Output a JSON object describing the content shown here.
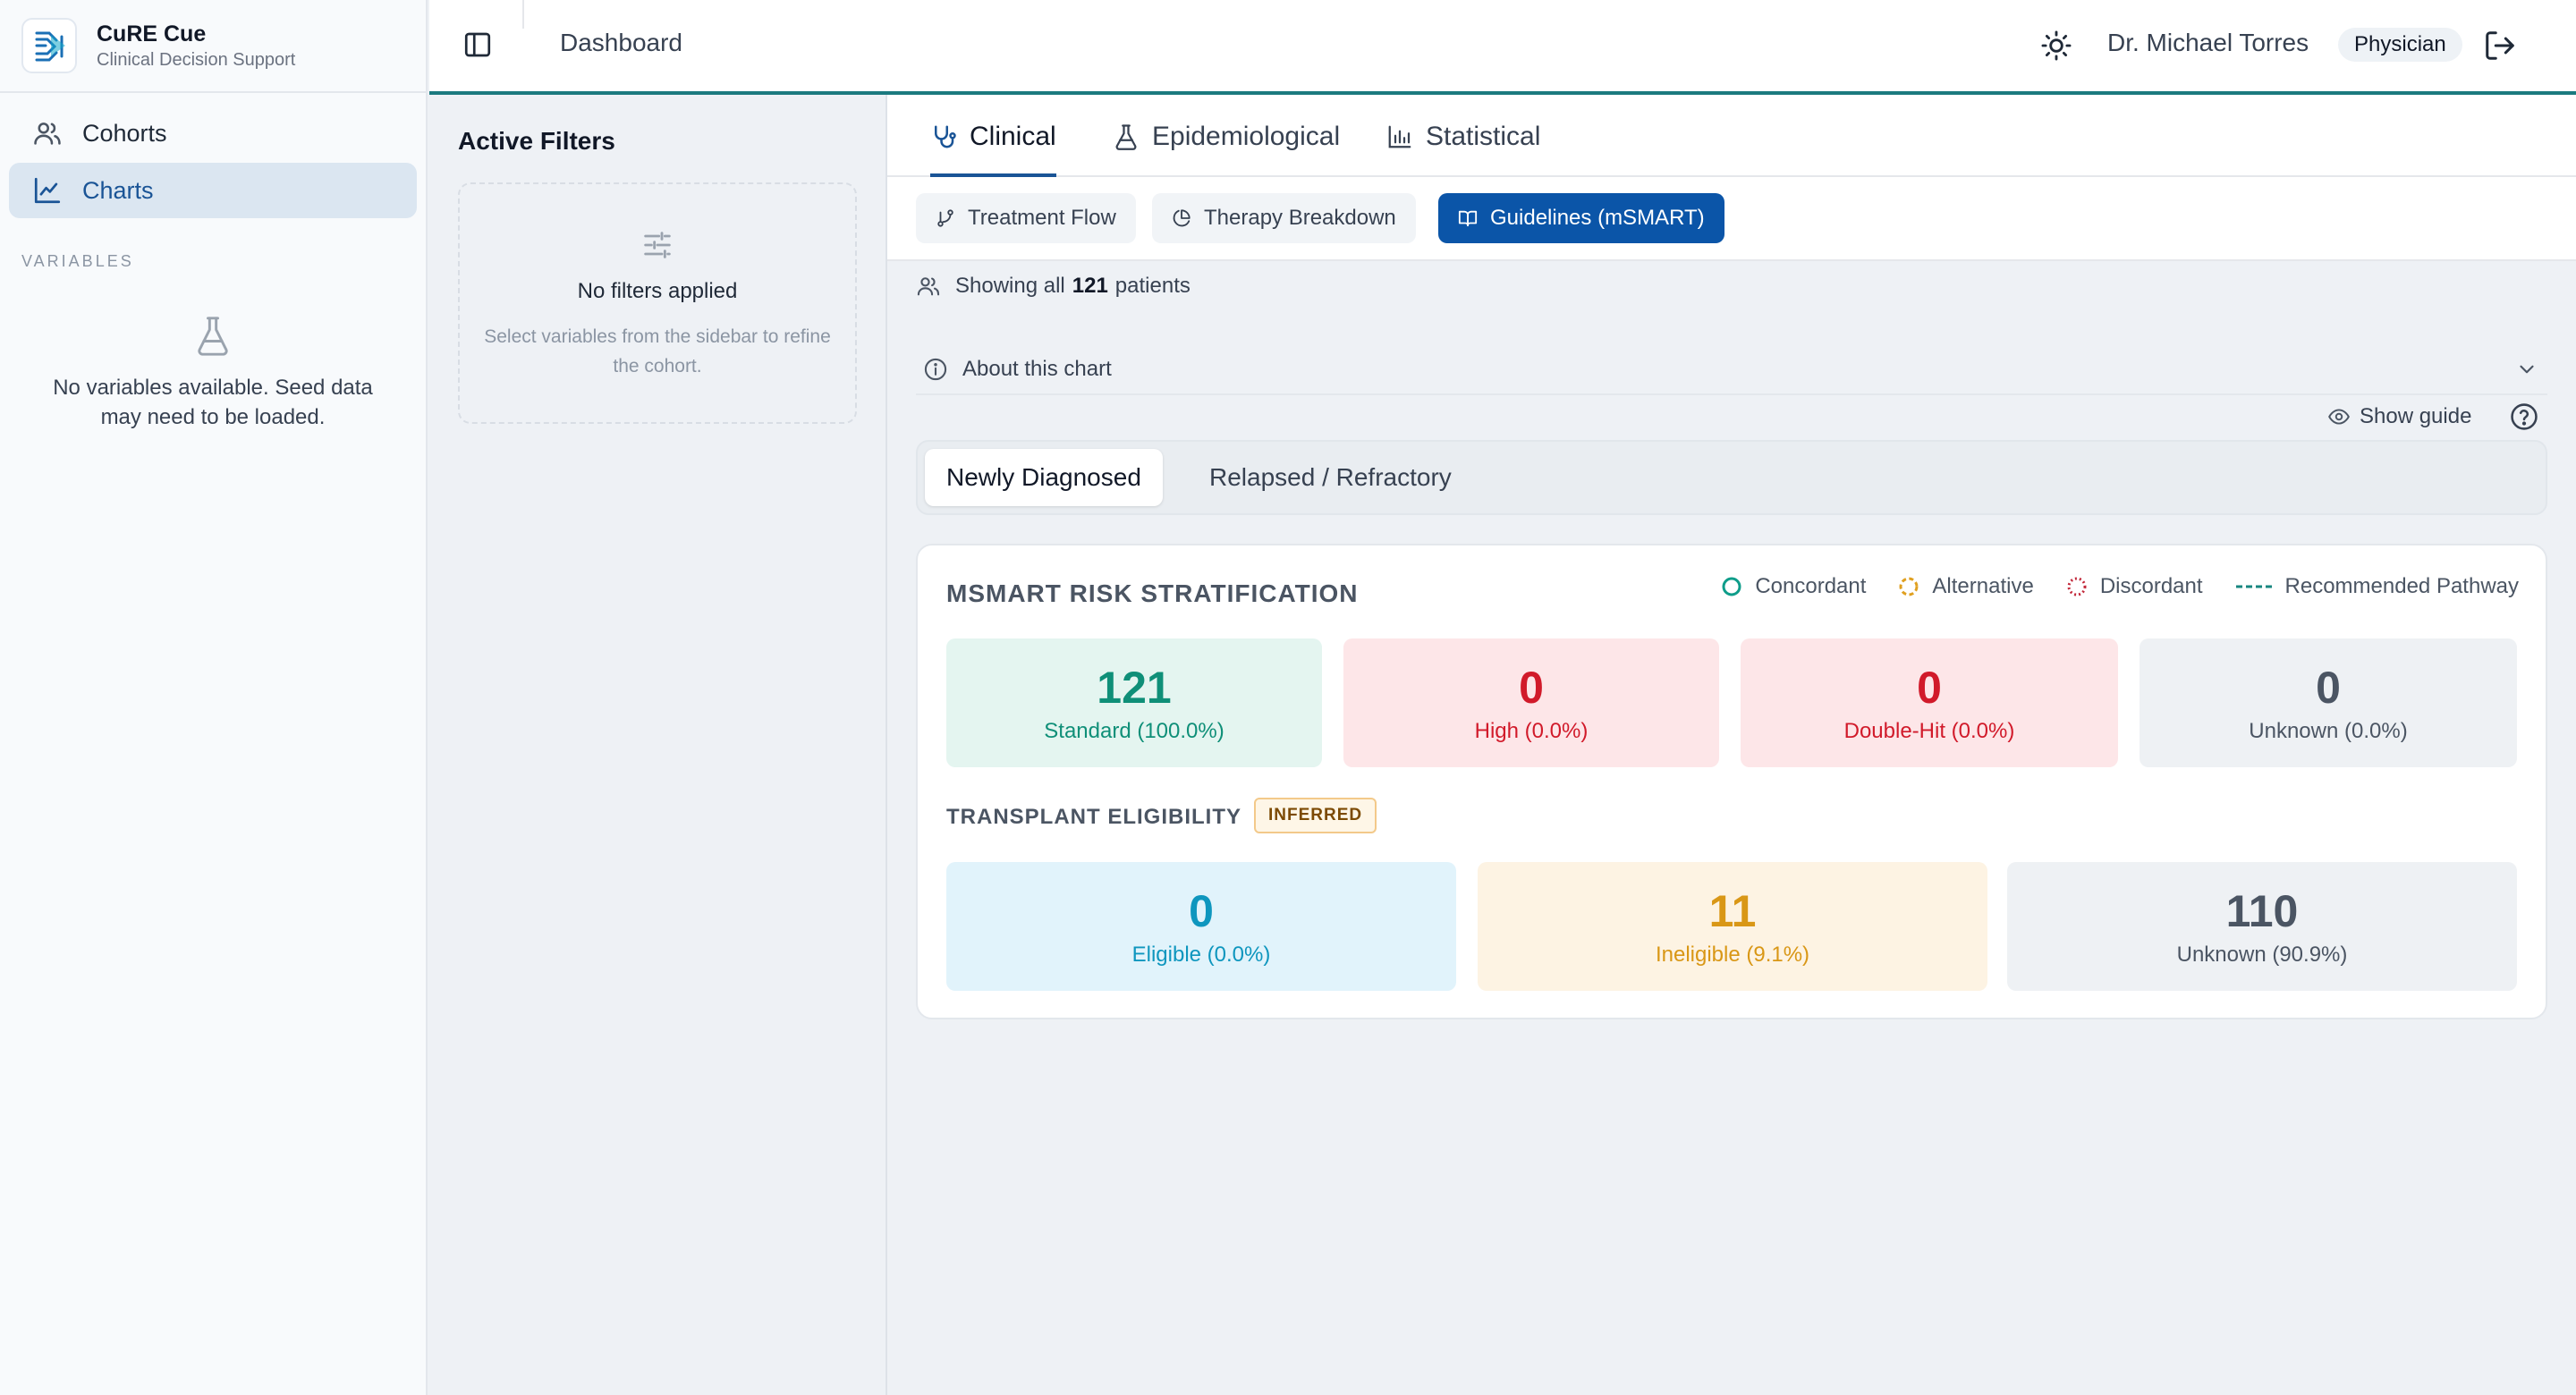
{
  "brand": {
    "name": "CuRE Cue",
    "subtitle": "Clinical Decision Support"
  },
  "sidebar": {
    "items": [
      {
        "label": "Cohorts",
        "icon": "users-icon",
        "active": false
      },
      {
        "label": "Charts",
        "icon": "line-chart-icon",
        "active": true
      }
    ],
    "variables_label": "VARIABLES",
    "empty_message": "No variables available. Seed data may need to be loaded."
  },
  "topbar": {
    "page_title": "Dashboard",
    "user_name": "Dr. Michael Torres",
    "role": "Physician"
  },
  "filters": {
    "title": "Active Filters",
    "empty_title": "No filters applied",
    "empty_hint": "Select variables from the sidebar to refine the cohort."
  },
  "tabs": [
    {
      "label": "Clinical",
      "icon": "stethoscope-icon",
      "active": true
    },
    {
      "label": "Epidemiological",
      "icon": "flask-icon",
      "active": false
    },
    {
      "label": "Statistical",
      "icon": "bar-chart-icon",
      "active": false
    }
  ],
  "subtabs": [
    {
      "label": "Treatment Flow",
      "icon": "git-branch-icon",
      "active": false
    },
    {
      "label": "Therapy Breakdown",
      "icon": "pie-chart-icon",
      "active": false
    },
    {
      "label": "Guidelines (mSMART)",
      "icon": "book-icon",
      "active": true
    }
  ],
  "cohort": {
    "prefix": "Showing all",
    "count": "121",
    "suffix": "patients"
  },
  "about": {
    "label": "About this chart"
  },
  "guide": {
    "label": "Show guide"
  },
  "segments": [
    {
      "label": "Newly Diagnosed",
      "active": true
    },
    {
      "label": "Relapsed / Refractory",
      "active": false
    }
  ],
  "risk_card": {
    "title": "MSMART RISK STRATIFICATION",
    "legend": [
      {
        "label": "Concordant",
        "color": "#0f9d8a"
      },
      {
        "label": "Alternative",
        "color": "#e0a020"
      },
      {
        "label": "Discordant",
        "color": "#c2283a"
      },
      {
        "label": "Recommended Pathway",
        "color": "#17867f"
      }
    ],
    "risk_tiles": [
      {
        "value": "121",
        "label": "Standard (100.0%)",
        "bg": "#e4f5f0",
        "color": "#0f8f78"
      },
      {
        "value": "0",
        "label": "High (0.0%)",
        "bg": "#fde6e8",
        "color": "#d11a2a"
      },
      {
        "value": "0",
        "label": "Double-Hit (0.0%)",
        "bg": "#fde6e8",
        "color": "#d11a2a"
      },
      {
        "value": "0",
        "label": "Unknown (0.0%)",
        "bg": "#eef1f4",
        "color": "#4b5563"
      }
    ],
    "transplant_title": "TRANSPLANT ELIGIBILITY",
    "inferred_badge": "INFERRED",
    "transplant_tiles": [
      {
        "value": "0",
        "label": "Eligible (0.0%)",
        "bg": "#e1f3fb",
        "color": "#0e96be"
      },
      {
        "value": "11",
        "label": "Ineligible (9.1%)",
        "bg": "#fdf3e3",
        "color": "#d99716"
      },
      {
        "value": "110",
        "label": "Unknown (90.9%)",
        "bg": "#eef1f4",
        "color": "#4b5563"
      }
    ]
  }
}
